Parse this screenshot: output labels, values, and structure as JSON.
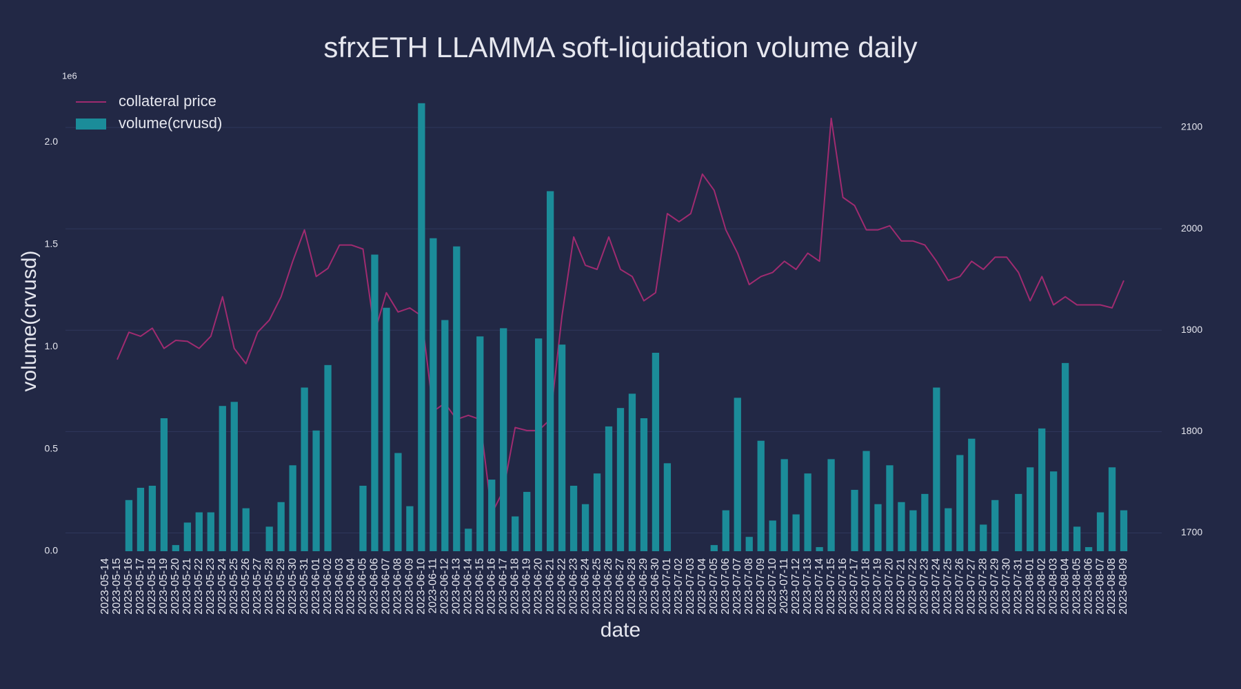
{
  "chart_data": {
    "type": "bar",
    "title": "sfrxETH LLAMMA soft-liquidation volume daily",
    "x_label": "date",
    "y_label": "volume(crvusd)",
    "y_offset_label": "1e6",
    "legend": "top-left",
    "grid": "y2",
    "categories": [
      "2023-05-14",
      "2023-05-15",
      "2023-05-16",
      "2023-05-17",
      "2023-05-18",
      "2023-05-19",
      "2023-05-20",
      "2023-05-21",
      "2023-05-22",
      "2023-05-23",
      "2023-05-24",
      "2023-05-25",
      "2023-05-26",
      "2023-05-27",
      "2023-05-28",
      "2023-05-29",
      "2023-05-30",
      "2023-05-31",
      "2023-06-01",
      "2023-06-02",
      "2023-06-03",
      "2023-06-04",
      "2023-06-05",
      "2023-06-06",
      "2023-06-07",
      "2023-06-08",
      "2023-06-09",
      "2023-06-10",
      "2023-06-11",
      "2023-06-12",
      "2023-06-13",
      "2023-06-14",
      "2023-06-15",
      "2023-06-16",
      "2023-06-17",
      "2023-06-18",
      "2023-06-19",
      "2023-06-20",
      "2023-06-21",
      "2023-06-22",
      "2023-06-23",
      "2023-06-24",
      "2023-06-25",
      "2023-06-26",
      "2023-06-27",
      "2023-06-28",
      "2023-06-29",
      "2023-06-30",
      "2023-07-01",
      "2023-07-02",
      "2023-07-03",
      "2023-07-04",
      "2023-07-05",
      "2023-07-06",
      "2023-07-07",
      "2023-07-08",
      "2023-07-09",
      "2023-07-10",
      "2023-07-11",
      "2023-07-12",
      "2023-07-13",
      "2023-07-14",
      "2023-07-15",
      "2023-07-16",
      "2023-07-17",
      "2023-07-18",
      "2023-07-19",
      "2023-07-20",
      "2023-07-21",
      "2023-07-22",
      "2023-07-23",
      "2023-07-24",
      "2023-07-25",
      "2023-07-26",
      "2023-07-27",
      "2023-07-28",
      "2023-07-29",
      "2023-07-30",
      "2023-07-31",
      "2023-08-01",
      "2023-08-02",
      "2023-08-03",
      "2023-08-04",
      "2023-08-05",
      "2023-08-06",
      "2023-08-07",
      "2023-08-08",
      "2023-08-09"
    ],
    "series": [
      {
        "name": "collateral price",
        "type": "line",
        "axis": "y2",
        "color": "#a02b70",
        "values": [
          null,
          1871,
          1898,
          1894,
          1902,
          1882,
          1890,
          1889,
          1882,
          1894,
          1933,
          1882,
          1867,
          1898,
          1910,
          1933,
          1968,
          1999,
          1953,
          1961,
          1984,
          1984,
          1980,
          1898,
          1937,
          1918,
          1922,
          1914,
          1820,
          1828,
          1812,
          1816,
          1812,
          1719,
          1742,
          1804,
          1801,
          1801,
          1812,
          1914,
          1992,
          1964,
          1960,
          1992,
          1960,
          1953,
          1929,
          1937,
          2015,
          2007,
          2015,
          2054,
          2038,
          1999,
          1976,
          1945,
          1953,
          1957,
          1968,
          1960,
          1976,
          1968,
          2109,
          2031,
          2023,
          1999,
          1999,
          2003,
          1988,
          1988,
          1984,
          1968,
          1949,
          1953,
          1968,
          1960,
          1972,
          1972,
          1957,
          1929,
          1953,
          1925,
          1933,
          1925,
          1925,
          1925,
          1922,
          1949
        ]
      },
      {
        "name": "volume(crvusd)",
        "type": "bar",
        "color": "#1b8c99",
        "values": [
          0,
          0,
          0.25,
          0.31,
          0.32,
          0.65,
          0.03,
          0.14,
          0.19,
          0.19,
          0.71,
          0.73,
          0.21,
          0,
          0.12,
          0.24,
          0.42,
          0.8,
          0.59,
          0.91,
          0,
          0,
          0.32,
          1.45,
          1.19,
          0.48,
          0.22,
          2.19,
          1.53,
          1.13,
          1.49,
          0.11,
          1.05,
          0.35,
          1.09,
          0.17,
          0.29,
          1.04,
          1.76,
          1.01,
          0.32,
          0.23,
          0.38,
          0.61,
          0.7,
          0.77,
          0.65,
          0.97,
          0.43,
          0,
          0,
          0,
          0.03,
          0.2,
          0.75,
          0.07,
          0.54,
          0.15,
          0.45,
          0.18,
          0.38,
          0.02,
          0.45,
          0,
          0.3,
          0.49,
          0.23,
          0.42,
          0.24,
          0.2,
          0.28,
          0.8,
          0.21,
          0.47,
          0.55,
          0.13,
          0.25,
          0,
          0.28,
          0.41,
          0.6,
          0.39,
          0.92,
          0.12,
          0.02,
          0.19,
          0.41,
          0.2
        ]
      }
    ],
    "ylim": [
      0,
      2.25
    ],
    "yticks": [
      {
        "value": 0,
        "label": "0.0"
      },
      0.5,
      {
        "value": 1,
        "label": "1.0"
      },
      1.5,
      {
        "value": 2,
        "label": "2.0"
      }
    ],
    "y2lim": [
      1682,
      2136
    ],
    "y2ticks": [
      1700,
      1800,
      1900,
      2000,
      2100
    ]
  }
}
